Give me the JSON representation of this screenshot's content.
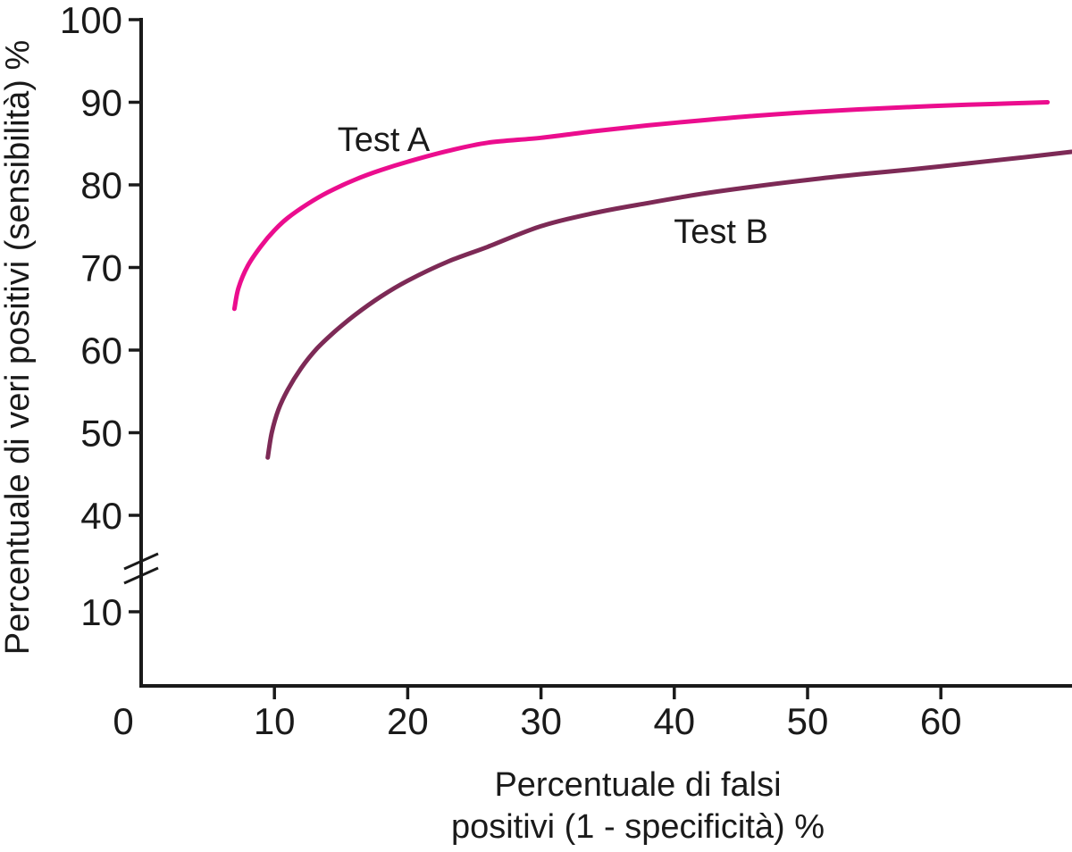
{
  "colors": {
    "background": "#ffffff",
    "axis": "#1a1a1a",
    "text": "#1a1a1a",
    "test_a": "#EB0D8E",
    "test_b": "#7D2A56",
    "test_b_label": "#8C3164"
  },
  "chart_data": {
    "type": "line",
    "title": "",
    "xlabel": "Percentuale di falsi positivi (1 - specificità) %",
    "xlabel_lines": [
      "Percentuale di falsi",
      "positivi (1 - specificità) %"
    ],
    "ylabel": "Percentuale di veri positivi (sensibilità) %",
    "x_ticks": [
      0,
      10,
      20,
      30,
      40,
      50,
      60
    ],
    "y_ticks_upper": [
      100,
      90,
      80,
      70,
      60,
      50,
      40
    ],
    "y_tick_below_break": 10,
    "y_axis_break": true,
    "xlim": [
      0,
      70
    ],
    "ylim": [
      0,
      100
    ],
    "grid": false,
    "legend": "inline-labels",
    "series": [
      {
        "name": "Test A",
        "color": "#EB0D8E",
        "label_color": "#EB0D8E",
        "label_anchor": {
          "x": 18.2,
          "y": 85.5
        },
        "points": [
          [
            7,
            65
          ],
          [
            7.3,
            67.5
          ],
          [
            8,
            70.2
          ],
          [
            9,
            72.6
          ],
          [
            10,
            74.5
          ],
          [
            11,
            76
          ],
          [
            12.5,
            77.7
          ],
          [
            14,
            79.1
          ],
          [
            16,
            80.6
          ],
          [
            18,
            81.8
          ],
          [
            20,
            82.8
          ],
          [
            23,
            84.1
          ],
          [
            26,
            85.1
          ],
          [
            30,
            85.7
          ],
          [
            34,
            86.5
          ],
          [
            38,
            87.2
          ],
          [
            42,
            87.8
          ],
          [
            46,
            88.35
          ],
          [
            50,
            88.8
          ],
          [
            54,
            89.15
          ],
          [
            58,
            89.45
          ],
          [
            62,
            89.7
          ],
          [
            65,
            89.85
          ],
          [
            68,
            90
          ]
        ]
      },
      {
        "name": "Test B",
        "color": "#7D2A56",
        "label_color": "#8C3164",
        "label_anchor": {
          "x": 43.5,
          "y": 74.4
        },
        "points": [
          [
            9.5,
            47
          ],
          [
            9.8,
            50
          ],
          [
            10.3,
            52.8
          ],
          [
            11,
            55.2
          ],
          [
            12,
            57.8
          ],
          [
            13.2,
            60.2
          ],
          [
            14.5,
            62.2
          ],
          [
            16,
            64.2
          ],
          [
            18,
            66.5
          ],
          [
            20,
            68.4
          ],
          [
            23,
            70.7
          ],
          [
            26,
            72.5
          ],
          [
            30,
            75
          ],
          [
            34,
            76.6
          ],
          [
            38,
            77.8
          ],
          [
            42,
            78.9
          ],
          [
            46,
            79.8
          ],
          [
            50,
            80.6
          ],
          [
            54,
            81.3
          ],
          [
            58,
            81.9
          ],
          [
            62,
            82.6
          ],
          [
            66,
            83.3
          ],
          [
            69.8,
            84
          ]
        ]
      }
    ]
  }
}
